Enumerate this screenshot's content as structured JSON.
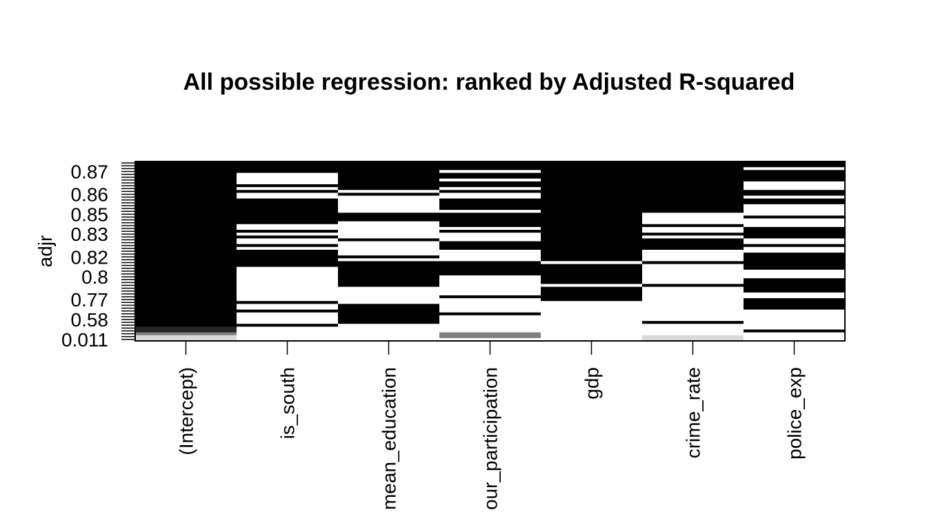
{
  "chart_data": {
    "type": "heatmap",
    "title": "All possible regression: ranked by Adjusted R-squared",
    "y_label": "adjr",
    "categories": [
      "(Intercept)",
      "is_south",
      "mean_education",
      "our_participation",
      "gdp",
      "crime_rate",
      "police_exp"
    ],
    "row_labels": [
      null,
      null,
      null,
      "0.87",
      null,
      null,
      null,
      null,
      null,
      null,
      null,
      "0.86",
      null,
      null,
      null,
      null,
      null,
      null,
      "0.85",
      null,
      null,
      null,
      null,
      null,
      null,
      "0.83",
      null,
      null,
      null,
      null,
      null,
      null,
      null,
      "0.82",
      null,
      null,
      null,
      null,
      null,
      null,
      "0.8",
      null,
      null,
      null,
      null,
      null,
      null,
      null,
      "0.77",
      null,
      null,
      null,
      null,
      null,
      null,
      "0.58",
      null,
      null,
      null,
      null,
      null,
      null,
      "0.011"
    ],
    "values": [
      [
        1,
        1,
        1,
        1,
        1,
        1,
        1,
        1,
        1,
        1,
        1,
        1,
        1,
        1,
        1,
        1,
        1,
        1,
        1,
        1,
        1,
        1,
        1,
        1,
        1,
        1,
        1,
        1,
        1,
        1,
        1,
        1,
        1,
        1,
        1,
        1,
        1,
        1,
        1,
        1,
        1,
        1,
        1,
        1,
        1,
        1,
        1,
        1,
        1,
        1,
        1,
        1,
        1,
        1,
        1,
        1,
        1,
        1,
        0.85,
        0.85,
        0.5,
        0.15,
        0.15
      ],
      [
        1,
        1,
        1,
        1,
        0,
        0,
        0,
        0,
        1,
        0,
        1,
        0,
        0,
        1,
        1,
        1,
        1,
        1,
        1,
        1,
        1,
        1,
        0,
        0,
        1,
        0,
        1,
        0,
        0,
        1,
        0,
        1,
        1,
        1,
        1,
        1,
        1,
        0,
        0,
        0,
        0,
        0,
        0,
        0,
        0,
        0,
        0,
        0,
        0,
        1,
        0,
        0,
        1,
        0,
        0,
        0,
        0,
        1,
        0,
        0,
        0,
        0,
        0
      ],
      [
        1,
        1,
        1,
        1,
        1,
        1,
        1,
        1,
        1,
        1,
        0,
        1,
        0,
        0,
        0,
        0,
        0,
        0,
        1,
        1,
        1,
        0,
        0,
        0,
        0,
        0,
        0,
        1,
        0,
        0,
        0,
        0,
        0,
        1,
        0,
        1,
        1,
        1,
        1,
        1,
        1,
        1,
        1,
        1,
        0,
        0,
        0,
        0,
        0,
        0,
        1,
        1,
        1,
        1,
        1,
        1,
        1,
        0,
        0,
        0,
        0,
        0,
        0
      ],
      [
        1,
        1,
        1,
        0,
        1,
        1,
        0,
        1,
        1,
        0,
        1,
        0,
        0,
        1,
        1,
        1,
        1,
        0,
        1,
        1,
        1,
        1,
        1,
        0,
        1,
        0,
        0,
        0,
        1,
        1,
        1,
        0,
        0,
        0,
        0,
        1,
        1,
        1,
        1,
        1,
        0,
        0,
        0,
        0,
        0,
        0,
        0,
        1,
        0,
        0,
        0,
        0,
        0,
        1,
        0,
        0,
        0,
        0,
        0,
        0,
        0.5,
        0.5,
        0
      ],
      [
        1,
        1,
        1,
        1,
        1,
        1,
        1,
        1,
        1,
        1,
        1,
        1,
        1,
        1,
        1,
        1,
        1,
        1,
        1,
        1,
        1,
        1,
        1,
        1,
        1,
        1,
        1,
        1,
        1,
        1,
        1,
        1,
        1,
        1,
        1,
        0,
        1,
        1,
        1,
        1,
        1,
        1,
        1,
        0,
        1,
        1,
        1,
        1,
        1,
        0,
        0,
        0,
        0,
        0,
        0,
        0,
        0,
        0,
        0,
        0,
        0,
        0,
        0
      ],
      [
        1,
        1,
        1,
        1,
        1,
        1,
        1,
        1,
        1,
        1,
        1,
        1,
        1,
        1,
        1,
        1,
        1,
        1,
        0,
        0,
        0,
        0,
        1,
        0,
        0,
        1,
        0,
        1,
        1,
        1,
        1,
        0,
        0,
        0,
        0,
        1,
        0,
        0,
        0,
        0,
        0,
        0,
        0,
        1,
        0,
        0,
        0,
        0,
        0,
        0,
        0,
        0,
        0,
        0,
        0,
        0,
        1,
        0,
        0,
        0,
        0,
        0.15,
        0.15
      ],
      [
        1,
        1,
        0,
        1,
        1,
        1,
        1,
        0,
        0,
        0,
        1,
        1,
        0,
        1,
        1,
        0,
        0,
        0,
        0,
        1,
        0,
        0,
        0,
        1,
        1,
        1,
        1,
        0,
        0,
        1,
        0,
        0,
        1,
        1,
        1,
        1,
        1,
        1,
        0,
        0,
        0,
        1,
        1,
        1,
        1,
        1,
        0,
        0,
        1,
        1,
        1,
        1,
        0,
        0,
        0,
        0,
        0,
        0,
        0,
        1,
        0,
        0,
        0
      ]
    ]
  }
}
